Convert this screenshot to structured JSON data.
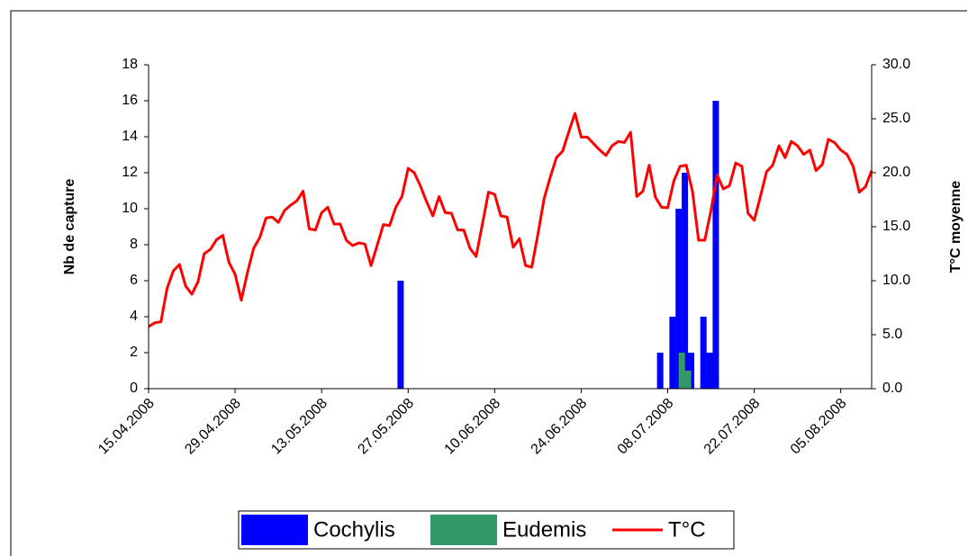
{
  "chart_data": {
    "type": "bar-line",
    "ylabel": "Nb de capture",
    "y2label": "T°C moyenne",
    "categories": [
      "15.04.2008",
      null,
      null,
      null,
      null,
      null,
      null,
      null,
      null,
      null,
      null,
      null,
      null,
      null,
      "29.04.2008",
      null,
      null,
      null,
      null,
      null,
      null,
      null,
      null,
      null,
      null,
      null,
      null,
      null,
      "13.05.2008",
      null,
      null,
      null,
      null,
      null,
      null,
      null,
      null,
      null,
      null,
      null,
      null,
      null,
      "27.05.2008",
      null,
      null,
      null,
      null,
      null,
      null,
      null,
      null,
      null,
      null,
      null,
      null,
      null,
      "10.06.2008",
      null,
      null,
      null,
      null,
      null,
      null,
      null,
      null,
      null,
      null,
      null,
      null,
      null,
      "24.06.2008",
      null,
      null,
      null,
      null,
      null,
      null,
      null,
      null,
      null,
      null,
      null,
      null,
      null,
      "08.07.2008",
      null,
      null,
      null,
      null,
      null,
      null,
      null,
      null,
      null,
      null,
      null,
      null,
      null,
      "22.07.2008",
      null,
      null,
      null,
      null,
      null,
      null,
      null,
      null,
      null,
      null,
      null,
      null,
      null,
      "05.08.2008",
      null,
      null,
      null,
      null,
      null
    ],
    "series": [
      {
        "name": "Cochylis",
        "type": "bar",
        "color": "#0000ff",
        "values": [
          null,
          null,
          null,
          null,
          null,
          null,
          null,
          null,
          null,
          null,
          null,
          null,
          null,
          null,
          null,
          null,
          null,
          null,
          null,
          null,
          null,
          null,
          null,
          null,
          null,
          null,
          null,
          null,
          null,
          null,
          null,
          null,
          null,
          null,
          null,
          null,
          null,
          null,
          null,
          null,
          null,
          6,
          null,
          null,
          null,
          null,
          null,
          null,
          null,
          null,
          null,
          null,
          null,
          null,
          null,
          null,
          null,
          null,
          null,
          null,
          null,
          null,
          null,
          null,
          null,
          null,
          null,
          null,
          null,
          null,
          null,
          null,
          null,
          null,
          null,
          null,
          null,
          null,
          null,
          null,
          null,
          null,
          null,
          2,
          null,
          4,
          10,
          12,
          2,
          null,
          4,
          2,
          16,
          null,
          null,
          null,
          null,
          null,
          null,
          null,
          null,
          null,
          null,
          null,
          null,
          null,
          null,
          null,
          null,
          null,
          null,
          null,
          null,
          null,
          null,
          null,
          null,
          null
        ]
      },
      {
        "name": "Eudemis",
        "type": "bar",
        "color": "#339966",
        "values": [
          null,
          null,
          null,
          null,
          null,
          null,
          null,
          null,
          null,
          null,
          null,
          null,
          null,
          null,
          null,
          null,
          null,
          null,
          null,
          null,
          null,
          null,
          null,
          null,
          null,
          null,
          null,
          null,
          null,
          null,
          null,
          null,
          null,
          null,
          null,
          null,
          null,
          null,
          null,
          null,
          null,
          null,
          null,
          null,
          null,
          null,
          null,
          null,
          null,
          null,
          null,
          null,
          null,
          null,
          null,
          null,
          null,
          null,
          null,
          null,
          null,
          null,
          null,
          null,
          null,
          null,
          null,
          null,
          null,
          null,
          null,
          null,
          null,
          null,
          null,
          null,
          null,
          null,
          null,
          null,
          null,
          null,
          null,
          null,
          null,
          null,
          2,
          1,
          null,
          null,
          null,
          null,
          null,
          null,
          null,
          null,
          null,
          null,
          null,
          null,
          null,
          null,
          null,
          null,
          null,
          null,
          null,
          null,
          null,
          null,
          null,
          null,
          null,
          null,
          null,
          null,
          null,
          null
        ]
      },
      {
        "name": "T°C",
        "type": "line",
        "axis": "y2",
        "color": "#ff0000",
        "values": [
          5.75,
          6.1,
          6.2,
          9.3,
          10.9,
          11.5,
          9.5,
          8.75,
          9.9,
          12.5,
          12.9,
          13.8,
          14.2,
          11.7,
          10.6,
          8.2,
          10.75,
          13,
          14,
          15.8,
          15.9,
          15.4,
          16.5,
          17,
          17.4,
          18.3,
          14.8,
          14.7,
          16.3,
          16.8,
          15.25,
          15.25,
          13.75,
          13.25,
          13.5,
          13.4,
          11.4,
          13.3,
          15.2,
          15.1,
          16.8,
          17.8,
          20.4,
          20,
          18.75,
          17.3,
          16,
          17.8,
          16.3,
          16.25,
          14.7,
          14.7,
          13,
          12.25,
          15.2,
          18.2,
          18,
          16,
          15.9,
          13.1,
          13.9,
          11.4,
          11.25,
          14.3,
          17.6,
          19.6,
          21.4,
          22,
          23.8,
          25.5,
          23.3,
          23.3,
          22.7,
          22.1,
          21.6,
          22.5,
          22.9,
          22.8,
          23.75,
          17.8,
          18.3,
          20.7,
          17.75,
          16.8,
          16.75,
          19.25,
          20.6,
          20.7,
          18.3,
          13.75,
          13.75,
          16.5,
          19.8,
          18.5,
          18.8,
          20.9,
          20.6,
          16.25,
          15.6,
          17.8,
          20.1,
          20.7,
          22.5,
          21.4,
          22.9,
          22.5,
          21.7,
          22.1,
          20.2,
          20.75,
          23.1,
          22.8,
          22.1,
          21.7,
          20.6,
          18.2,
          18.7,
          20.2
        ]
      }
    ],
    "ylim": [
      0,
      18
    ],
    "yticks": [
      0,
      2,
      4,
      6,
      8,
      10,
      12,
      14,
      16,
      18
    ],
    "y2lim": [
      0,
      30
    ],
    "y2ticks": [
      {
        "value": 0,
        "label": "0.0"
      },
      {
        "value": 5,
        "label": "5.0"
      },
      {
        "value": 10,
        "label": "10.0"
      },
      {
        "value": 15,
        "label": "15.0"
      },
      {
        "value": 20,
        "label": "20.0"
      },
      {
        "value": 25,
        "label": "25.0"
      },
      {
        "value": 30,
        "label": "30.0"
      }
    ],
    "grid": false,
    "legend": "bottom"
  }
}
